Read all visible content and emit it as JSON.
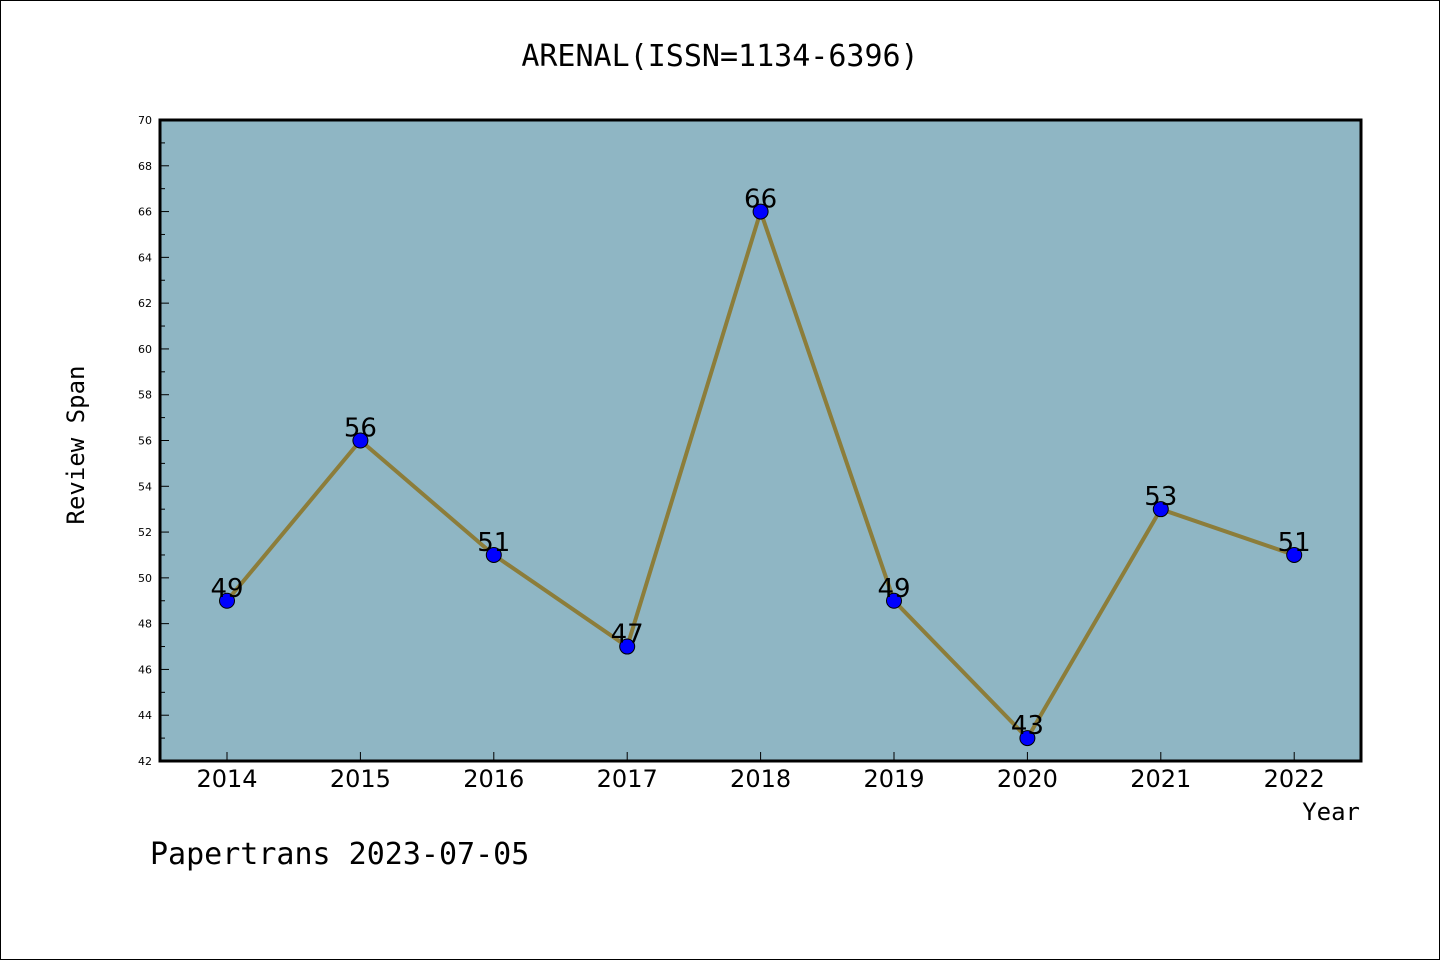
{
  "chart_data": {
    "type": "line",
    "title": "ARENAL(ISSN=1134-6396)",
    "xlabel": "Year",
    "ylabel": "Review Span",
    "categories": [
      "2014",
      "2015",
      "2016",
      "2017",
      "2018",
      "2019",
      "2020",
      "2021",
      "2022"
    ],
    "series": [
      {
        "values": [
          49,
          56,
          51,
          47,
          66,
          49,
          43,
          53,
          51
        ]
      }
    ],
    "ylim": [
      42,
      70
    ],
    "yticks": [
      42,
      44,
      46,
      48,
      50,
      52,
      54,
      56,
      58,
      60,
      62,
      64,
      66,
      68,
      70
    ],
    "grid": false,
    "colors": {
      "plot_background": "#8fb6c4",
      "line": "#8c7d3a",
      "marker": "#0000ff"
    }
  },
  "footer": {
    "text": "Papertrans 2023-07-05"
  }
}
